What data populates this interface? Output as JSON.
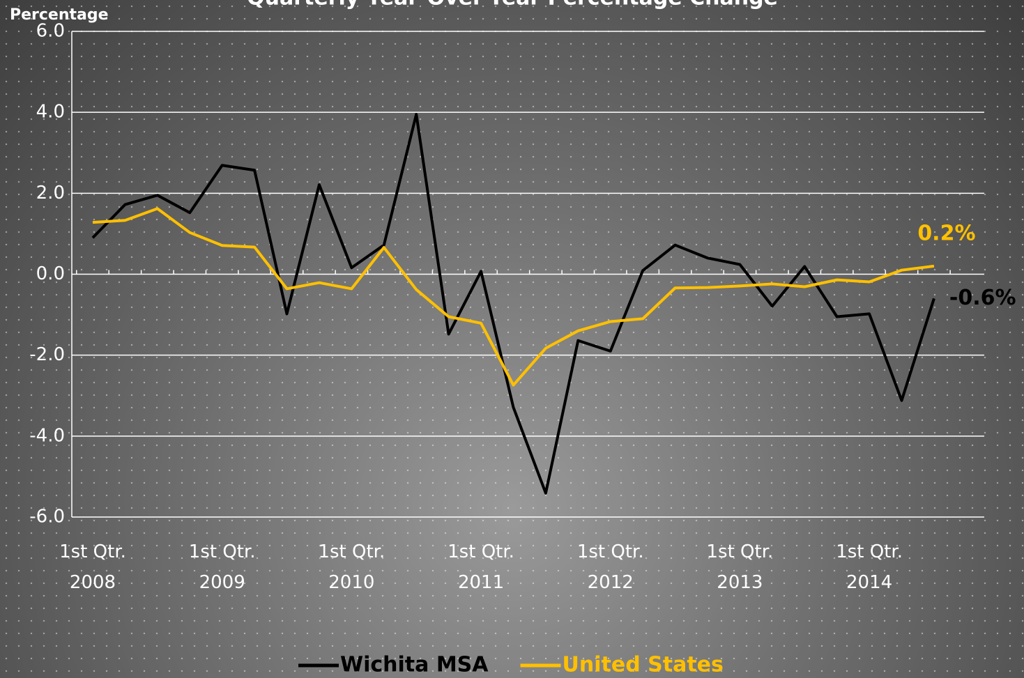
{
  "chart_data": {
    "type": "line",
    "title": "Quarterly Year-Over-Year Percentage Change",
    "y_label": "Percentage",
    "categories": [
      "1st Qtr. 2008",
      null,
      null,
      null,
      "1st Qtr. 2009",
      null,
      null,
      null,
      "1st Qtr. 2010",
      null,
      null,
      null,
      "1st Qtr. 2011",
      null,
      null,
      null,
      "1st Qtr. 2012",
      null,
      null,
      null,
      "1st Qtr. 2013",
      null,
      null,
      null,
      "1st Qtr. 2014",
      null,
      null
    ],
    "series": [
      {
        "name": "Wichita MSA",
        "color": "#000000",
        "values": [
          0.9,
          1.72,
          1.95,
          1.52,
          2.69,
          2.57,
          -0.98,
          2.21,
          0.16,
          0.72,
          3.95,
          -1.48,
          0.07,
          -3.29,
          -5.41,
          -1.64,
          -1.9,
          0.09,
          0.72,
          0.4,
          0.24,
          -0.79,
          0.19,
          -1.05,
          -0.98,
          -3.12,
          -0.6
        ],
        "value_labels": [
          null,
          null,
          null,
          null,
          null,
          null,
          null,
          null,
          null,
          null,
          null,
          null,
          null,
          null,
          null,
          null,
          null,
          null,
          null,
          null,
          null,
          null,
          null,
          null,
          null,
          null,
          "-0.6%"
        ]
      },
      {
        "name": "United States",
        "color": "#ffc000",
        "values": [
          1.28,
          1.33,
          1.62,
          1.03,
          0.71,
          0.67,
          -0.36,
          -0.21,
          -0.36,
          0.66,
          -0.38,
          -1.05,
          -1.21,
          -2.74,
          -1.83,
          -1.4,
          -1.17,
          -1.1,
          -0.34,
          -0.33,
          -0.29,
          -0.24,
          -0.31,
          -0.14,
          -0.19,
          0.1,
          0.2
        ],
        "value_labels": [
          null,
          null,
          null,
          null,
          null,
          null,
          null,
          null,
          null,
          null,
          null,
          null,
          null,
          null,
          null,
          null,
          null,
          null,
          null,
          null,
          null,
          null,
          null,
          null,
          null,
          null,
          "0.2%"
        ]
      }
    ],
    "ylim": [
      -6,
      6
    ],
    "yticks": [
      {
        "value": -6,
        "label": "-6.0"
      },
      {
        "value": -4,
        "label": "-4.0"
      },
      {
        "value": -2,
        "label": "-2.0"
      },
      {
        "value": 0,
        "label": "0.0"
      },
      {
        "value": 2,
        "label": "2.0"
      },
      {
        "value": 4,
        "label": "4.0"
      },
      {
        "value": 6,
        "label": "6.0"
      }
    ],
    "grid": true,
    "legend": "bottom"
  }
}
